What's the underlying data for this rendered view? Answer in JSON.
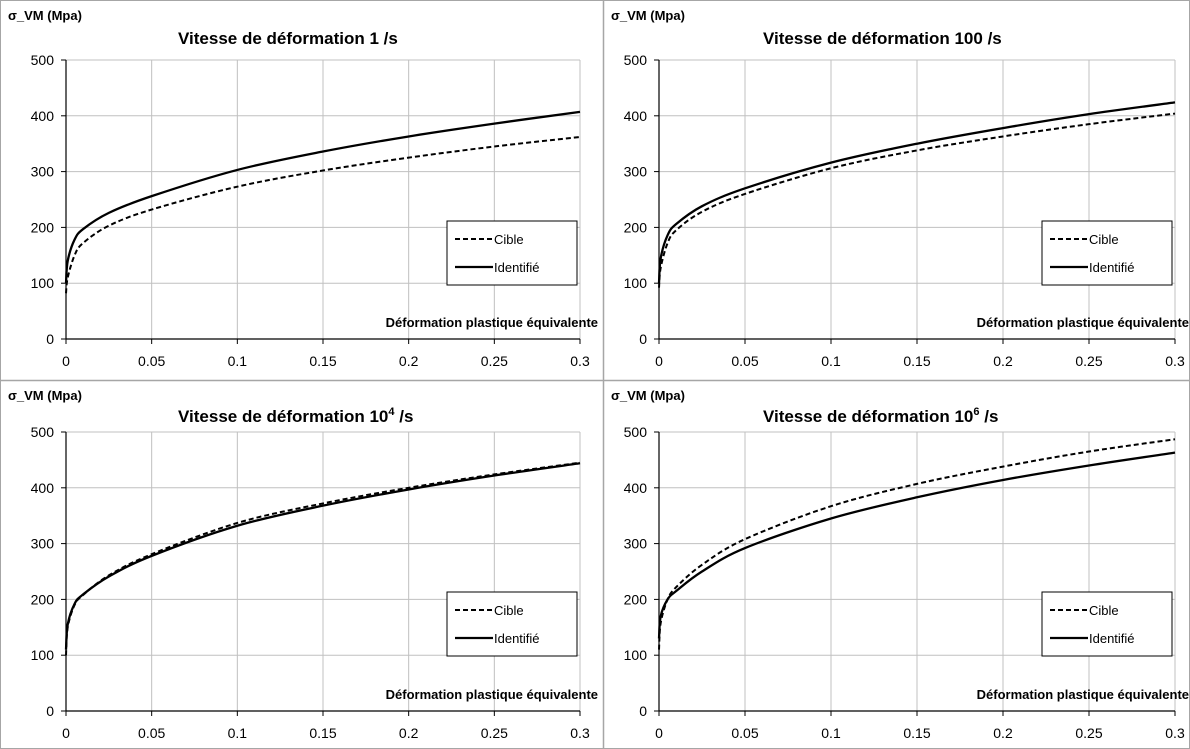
{
  "chart_data": [
    {
      "type": "line",
      "title": "Vitesse de déformation 1 /s",
      "title_base": "Vitesse de déformation 1",
      "title_sup": "",
      "title_tail": " /s",
      "ylabel": "σ_VM (Mpa)",
      "xlabel": "Déformation plastique équivalente",
      "xlim": [
        0,
        0.3
      ],
      "ylim": [
        0,
        500
      ],
      "xticks": [
        "0",
        "0.05",
        "0.1",
        "0.15",
        "0.2",
        "0.25",
        "0.3"
      ],
      "yticks": [
        "0",
        "100",
        "200",
        "300",
        "400",
        "500"
      ],
      "grid": true,
      "legend": "right-middle",
      "series": [
        {
          "name": "Cible",
          "style": "dashed",
          "x": [
            0,
            0.001,
            0.005,
            0.01,
            0.025,
            0.05,
            0.1,
            0.15,
            0.2,
            0.25,
            0.3
          ],
          "y": [
            82,
            110,
            150,
            172,
            203,
            232,
            273,
            302,
            325,
            345,
            362
          ]
        },
        {
          "name": "Identifié",
          "style": "solid",
          "x": [
            0,
            0.001,
            0.005,
            0.01,
            0.025,
            0.05,
            0.1,
            0.15,
            0.2,
            0.25,
            0.3
          ],
          "y": [
            100,
            140,
            178,
            197,
            226,
            256,
            303,
            336,
            363,
            386,
            407
          ]
        }
      ]
    },
    {
      "type": "line",
      "title": "Vitesse de déformation 100 /s",
      "title_base": "Vitesse de déformation 100",
      "title_sup": "",
      "title_tail": " /s",
      "ylabel": "σ_VM (Mpa)",
      "xlabel": "Déformation plastique équivalente",
      "xlim": [
        0,
        0.3
      ],
      "ylim": [
        0,
        500
      ],
      "xticks": [
        "0",
        "0.05",
        "0.1",
        "0.15",
        "0.2",
        "0.25",
        "0.3"
      ],
      "yticks": [
        "0",
        "100",
        "200",
        "300",
        "400",
        "500"
      ],
      "grid": true,
      "legend": "right-middle",
      "series": [
        {
          "name": "Cible",
          "style": "dashed",
          "x": [
            0,
            0.001,
            0.005,
            0.01,
            0.025,
            0.05,
            0.1,
            0.15,
            0.2,
            0.25,
            0.3
          ],
          "y": [
            92,
            128,
            172,
            195,
            228,
            260,
            306,
            338,
            363,
            385,
            404
          ]
        },
        {
          "name": "Identifié",
          "style": "solid",
          "x": [
            0,
            0.001,
            0.005,
            0.01,
            0.025,
            0.05,
            0.1,
            0.15,
            0.2,
            0.25,
            0.3
          ],
          "y": [
            100,
            145,
            186,
            206,
            238,
            270,
            316,
            350,
            378,
            403,
            424
          ]
        }
      ]
    },
    {
      "type": "line",
      "title": "Vitesse de déformation 10⁴ /s",
      "title_base": "Vitesse de déformation 10",
      "title_sup": "4",
      "title_tail": " /s",
      "ylabel": "σ_VM (Mpa)",
      "xlabel": "Déformation plastique équivalente",
      "xlim": [
        0,
        0.3
      ],
      "ylim": [
        0,
        500
      ],
      "xticks": [
        "0",
        "0.05",
        "0.1",
        "0.15",
        "0.2",
        "0.25",
        "0.3"
      ],
      "yticks": [
        "0",
        "100",
        "200",
        "300",
        "400",
        "500"
      ],
      "grid": true,
      "legend": "right-middle",
      "series": [
        {
          "name": "Cible",
          "style": "dashed",
          "x": [
            0,
            0.001,
            0.005,
            0.01,
            0.025,
            0.05,
            0.1,
            0.15,
            0.2,
            0.25,
            0.3
          ],
          "y": [
            100,
            150,
            190,
            208,
            243,
            281,
            337,
            372,
            400,
            424,
            445
          ]
        },
        {
          "name": "Identifié",
          "style": "solid",
          "x": [
            0,
            0.001,
            0.005,
            0.01,
            0.025,
            0.05,
            0.1,
            0.15,
            0.2,
            0.25,
            0.3
          ],
          "y": [
            110,
            155,
            192,
            209,
            241,
            278,
            332,
            368,
            397,
            422,
            444
          ]
        }
      ]
    },
    {
      "type": "line",
      "title": "Vitesse de déformation 10⁶ /s",
      "title_base": "Vitesse de déformation 10",
      "title_sup": "6",
      "title_tail": " /s",
      "ylabel": "σ_VM (Mpa)",
      "xlabel": "Déformation plastique équivalente",
      "xlim": [
        0,
        0.3
      ],
      "ylim": [
        0,
        500
      ],
      "xticks": [
        "0",
        "0.05",
        "0.1",
        "0.15",
        "0.2",
        "0.25",
        "0.3"
      ],
      "yticks": [
        "0",
        "100",
        "200",
        "300",
        "400",
        "500"
      ],
      "grid": true,
      "legend": "right-middle",
      "series": [
        {
          "name": "Cible",
          "style": "dashed",
          "x": [
            0,
            0.001,
            0.005,
            0.01,
            0.025,
            0.05,
            0.1,
            0.15,
            0.2,
            0.25,
            0.3
          ],
          "y": [
            110,
            158,
            200,
            222,
            262,
            308,
            367,
            407,
            438,
            465,
            487
          ]
        },
        {
          "name": "Identifié",
          "style": "solid",
          "x": [
            0,
            0.001,
            0.005,
            0.01,
            0.025,
            0.05,
            0.1,
            0.15,
            0.2,
            0.25,
            0.3
          ],
          "y": [
            130,
            170,
            200,
            215,
            250,
            292,
            345,
            383,
            414,
            440,
            463
          ]
        }
      ]
    }
  ]
}
